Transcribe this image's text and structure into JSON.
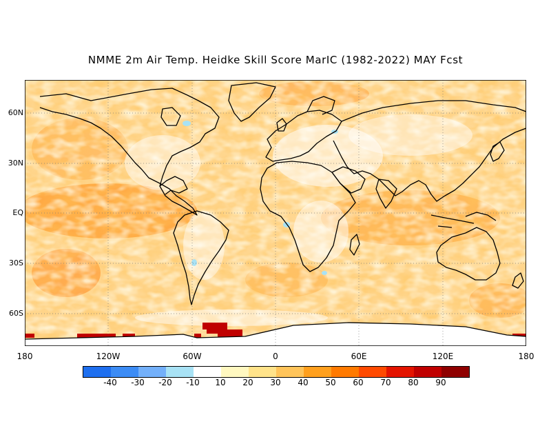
{
  "title": "NMME 2m Air Temp. Heidke Skill Score MarIC (1982-2022) MAY Fcst",
  "lat_labels": [
    "60N",
    "30N",
    "EQ",
    "30S",
    "60S"
  ],
  "lon_labels": [
    "180",
    "120W",
    "60W",
    "0",
    "60E",
    "120E",
    "180"
  ],
  "colorbar": {
    "colors": [
      "#1e6fef",
      "#3c8cf5",
      "#73b0fa",
      "#a8e2f5",
      "#ffffff",
      "#fff8c0",
      "#ffe38a",
      "#ffc45a",
      "#ffa01e",
      "#ff7a00",
      "#ff4a00",
      "#e41400",
      "#c00000",
      "#8f0000"
    ],
    "labels": [
      "-40",
      "-30",
      "-20",
      "-10",
      "10",
      "20",
      "30",
      "40",
      "50",
      "60",
      "70",
      "80",
      "90"
    ]
  },
  "map": {
    "type": "global skill score map",
    "variable": "2m Air Temp.",
    "metric": "Heidke Skill Score"
  }
}
